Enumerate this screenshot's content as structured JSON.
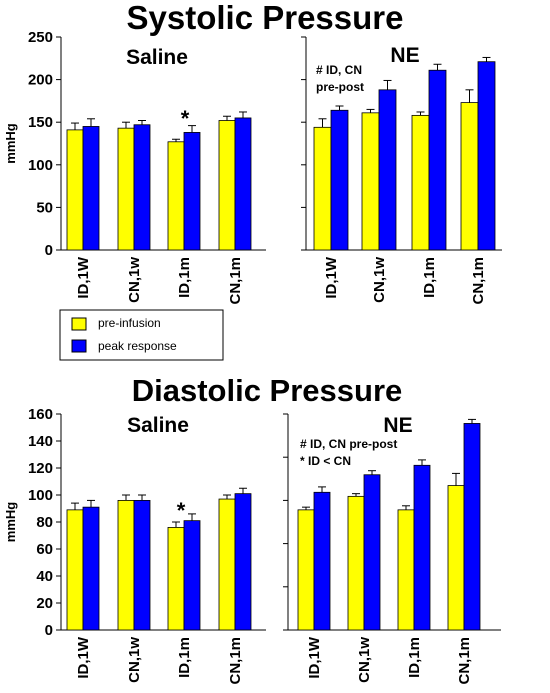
{
  "titles": {
    "top": "Systolic Pressure",
    "bottom": "Diastolic Pressure"
  },
  "colors": {
    "pre": "#ffff00",
    "peak": "#0000ff",
    "axis": "#000000",
    "background": "#ffffff"
  },
  "legend": {
    "items": [
      {
        "label": "pre-infusion",
        "color": "#ffff00"
      },
      {
        "label": "peak response",
        "color": "#0000ff"
      }
    ]
  },
  "chart_data": [
    {
      "type": "bar",
      "panel": "systolic-saline",
      "title": "Saline",
      "ylabel": "mmHg",
      "ylim": [
        0,
        250
      ],
      "yticks": [
        0,
        50,
        100,
        150,
        200,
        250
      ],
      "categories": [
        "ID,1W",
        "CN,1w",
        "ID,1m",
        "CN,1m"
      ],
      "series": [
        {
          "name": "pre-infusion",
          "values": [
            141,
            143,
            127,
            152
          ],
          "errors": [
            8,
            7,
            3,
            5
          ]
        },
        {
          "name": "peak response",
          "values": [
            145,
            147,
            138,
            155
          ],
          "errors": [
            9,
            5,
            8,
            7
          ]
        }
      ],
      "annotations": [
        {
          "text": "*",
          "category": 2
        }
      ]
    },
    {
      "type": "bar",
      "panel": "systolic-ne",
      "title": "NE",
      "ylim": [
        0,
        250
      ],
      "categories": [
        "ID,1W",
        "CN,1w",
        "ID,1m",
        "CN,1m"
      ],
      "series": [
        {
          "name": "pre-infusion",
          "values": [
            144,
            161,
            158,
            173
          ],
          "errors": [
            10,
            4,
            4,
            15
          ]
        },
        {
          "name": "peak response",
          "values": [
            164,
            188,
            211,
            221
          ],
          "errors": [
            5,
            11,
            7,
            5
          ]
        }
      ],
      "annotations": [
        {
          "lines": [
            "# ID, CN",
            "pre-post"
          ]
        }
      ]
    },
    {
      "type": "bar",
      "panel": "diastolic-saline",
      "title": "Saline",
      "ylabel": "mmHg",
      "ylim": [
        0,
        160
      ],
      "yticks": [
        0,
        20,
        40,
        60,
        80,
        100,
        120,
        140,
        160
      ],
      "categories": [
        "ID,1W",
        "CN,1w",
        "ID,1m",
        "CN,1m"
      ],
      "series": [
        {
          "name": "pre-infusion",
          "values": [
            89,
            96,
            76,
            97
          ],
          "errors": [
            5,
            4,
            4,
            3
          ]
        },
        {
          "name": "peak response",
          "values": [
            91,
            96,
            81,
            101
          ],
          "errors": [
            5,
            4,
            5,
            4
          ]
        }
      ],
      "annotations": [
        {
          "text": "*",
          "category": 2
        }
      ]
    },
    {
      "type": "bar",
      "panel": "diastolic-ne",
      "title": "NE",
      "ylim": [
        0,
        160
      ],
      "categories": [
        "ID,1W",
        "CN,1w",
        "ID,1m",
        "CN,1m"
      ],
      "series": [
        {
          "name": "pre-infusion",
          "values": [
            89,
            99,
            89,
            107
          ],
          "errors": [
            2,
            2,
            3,
            9
          ]
        },
        {
          "name": "peak response",
          "values": [
            102,
            115,
            122,
            153
          ],
          "errors": [
            4,
            3,
            4,
            3
          ]
        }
      ],
      "annotations": [
        {
          "lines": [
            "# ID, CN pre-post",
            "* ID < CN"
          ]
        }
      ]
    }
  ]
}
